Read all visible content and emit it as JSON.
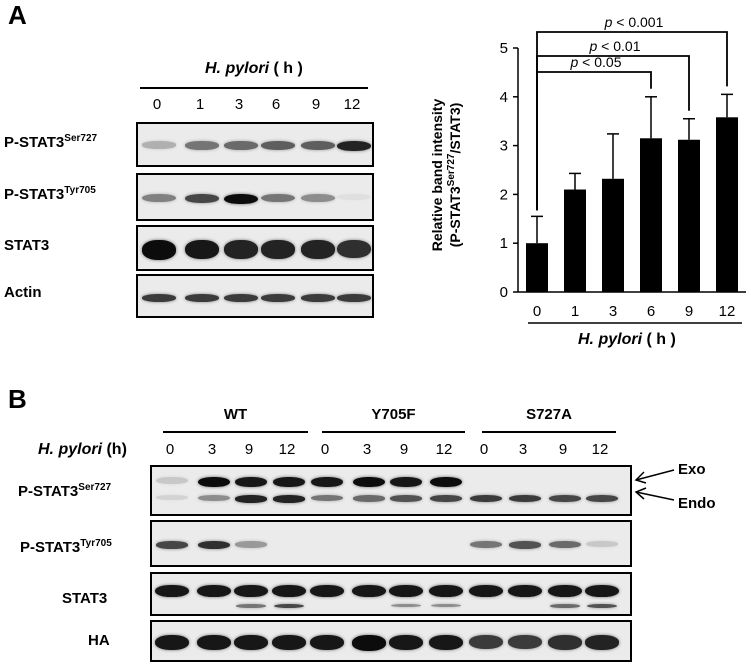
{
  "panelA": {
    "label": "A",
    "treatment_italic": "H. pylori",
    "treatment_unit": "( h )",
    "timepoints": [
      "0",
      "1",
      "3",
      "6",
      "9",
      "12"
    ],
    "rows": [
      {
        "main": "P-STAT3",
        "sup": "Ser727",
        "intensity": [
          0.25,
          0.5,
          0.55,
          0.6,
          0.6,
          0.85
        ]
      },
      {
        "main": "P-STAT3",
        "sup": "Tyr705",
        "intensity": [
          0.45,
          0.7,
          0.95,
          0.5,
          0.4,
          0.05
        ]
      },
      {
        "main": "STAT3",
        "sup": "",
        "intensity": [
          0.95,
          0.9,
          0.85,
          0.85,
          0.85,
          0.8
        ]
      },
      {
        "main": "Actin",
        "sup": "",
        "intensity": [
          0.75,
          0.75,
          0.75,
          0.75,
          0.75,
          0.75
        ]
      }
    ]
  },
  "chart_data": {
    "type": "bar",
    "categories": [
      "0",
      "1",
      "3",
      "6",
      "9",
      "12"
    ],
    "values": [
      1.0,
      2.1,
      2.32,
      3.15,
      3.12,
      3.58
    ],
    "errors": [
      0.55,
      0.33,
      0.92,
      0.85,
      0.43,
      0.47
    ],
    "ylabel_line1": "Relative band intensity",
    "ylabel_line2_pre": "(P-STAT3",
    "ylabel_line2_sup": "Ser727",
    "ylabel_line2_post": "/STAT3)",
    "ylim": [
      0,
      5
    ],
    "yticks": [
      "0",
      "1",
      "2",
      "3",
      "4",
      "5"
    ],
    "xlabel_italic": "H. pylori",
    "xlabel_unit": "( h )",
    "bar_color": "#000000",
    "significance": [
      {
        "from": "0",
        "to": "6",
        "label_p": "p",
        "label_rest": " < 0.05"
      },
      {
        "from": "0",
        "to": "9",
        "label_p": "p",
        "label_rest": " < 0.01"
      },
      {
        "from": "0",
        "to": "12",
        "label_p": "p",
        "label_rest": " < 0.001"
      }
    ]
  },
  "panelB": {
    "label": "B",
    "treatment_italic": "H. pylori",
    "treatment_unit": "(h)",
    "groups": [
      "WT",
      "Y705F",
      "S727A"
    ],
    "timepoints": [
      "0",
      "3",
      "9",
      "12"
    ],
    "arrow_exo": "Exo",
    "arrow_endo": "Endo",
    "rows": [
      {
        "main": "P-STAT3",
        "sup": "Ser727"
      },
      {
        "main": "P-STAT3",
        "sup": "Tyr705"
      },
      {
        "main": "STAT3",
        "sup": ""
      },
      {
        "main": "HA",
        "sup": ""
      }
    ],
    "ser727_exo": [
      0.15,
      0.95,
      0.9,
      0.9,
      0.9,
      0.95,
      0.9,
      0.95,
      0,
      0,
      0,
      0
    ],
    "ser727_endo": [
      0.1,
      0.4,
      0.85,
      0.85,
      0.5,
      0.55,
      0.65,
      0.7,
      0.75,
      0.75,
      0.7,
      0.7
    ],
    "tyr705": [
      0.7,
      0.8,
      0.35,
      0,
      0,
      0,
      0,
      0,
      0.5,
      0.65,
      0.55,
      0.15
    ],
    "stat3": [
      0.9,
      0.9,
      0.9,
      0.9,
      0.9,
      0.9,
      0.9,
      0.9,
      0.9,
      0.9,
      0.9,
      0.9
    ],
    "stat3_lower": [
      0,
      0,
      0.5,
      0.7,
      0,
      0,
      0.4,
      0.4,
      0,
      0,
      0.55,
      0.65
    ],
    "ha": [
      0.9,
      0.9,
      0.9,
      0.9,
      0.9,
      0.95,
      0.9,
      0.9,
      0.75,
      0.75,
      0.8,
      0.85
    ]
  }
}
